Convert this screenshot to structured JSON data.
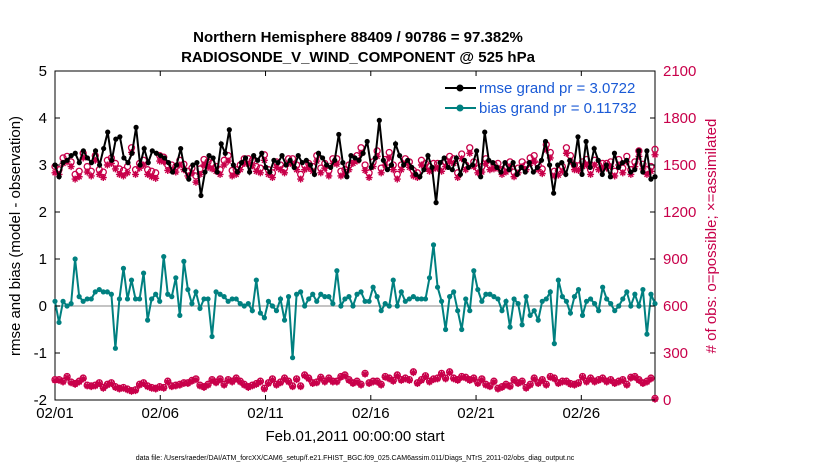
{
  "chart_data": {
    "type": "line",
    "title_line1": "Northern Hemisphere 88409 / 90786 = 97.382%",
    "title_line2": "RADIOSONDE_V_WIND_COMPONENT @ 525 hPa",
    "xlabel": "Feb.01,2011 00:00:00 start",
    "ylabel": "rmse and bias (model - observation)",
    "ylabel_right": "# of obs: o=possible; ×=assimilated",
    "footer": "data file: /Users/raeder/DAI/ATM_forcXX/CAM6_setup/f.e21.FHIST_BGC.f09_025.CAM6assim.011/Diags_NTrS_2011-02/obs_diag_output.nc",
    "xlim": [
      0,
      28.5
    ],
    "ylim": [
      -2,
      5
    ],
    "ylim_right": [
      0,
      2100
    ],
    "x_ticks": [
      0,
      5,
      10,
      15,
      20,
      25
    ],
    "x_tick_labels": [
      "02/01",
      "02/06",
      "02/11",
      "02/16",
      "02/21",
      "02/26"
    ],
    "y_ticks": [
      -2,
      -1,
      0,
      1,
      2,
      3,
      4,
      5
    ],
    "y_tick_labels": [
      "-2",
      "-1",
      "0",
      "1",
      "2",
      "3",
      "4",
      "5"
    ],
    "y_right_ticks": [
      0,
      300,
      600,
      900,
      1200,
      1500,
      1800,
      2100
    ],
    "y_right_tick_labels": [
      "0",
      "300",
      "600",
      "900",
      "1200",
      "1500",
      "1800",
      "2100"
    ],
    "colors": {
      "rmse": "#000000",
      "bias": "#008080",
      "obs": "#c8004a",
      "zero_line": "#b0b0b0",
      "legend_text": "#1a5ad6"
    },
    "series": [
      {
        "name": "rmse",
        "legend": "rmse grand pr = 3.0722",
        "values": [
          3.0,
          2.75,
          3.05,
          3.1,
          3.2,
          3.25,
          3.05,
          3.3,
          3.15,
          3.05,
          3.3,
          3.0,
          3.35,
          3.7,
          3.1,
          3.55,
          3.6,
          3.15,
          3.05,
          3.25,
          3.8,
          3.0,
          3.35,
          3.05,
          3.3,
          3.25,
          3.2,
          3.15,
          3.05,
          2.85,
          3.0,
          3.35,
          2.9,
          2.7,
          3.0,
          3.05,
          2.35,
          2.85,
          3.2,
          3.15,
          2.85,
          3.45,
          3.25,
          3.75,
          3.0,
          2.85,
          3.05,
          3.15,
          2.85,
          3.2,
          3.1,
          3.25,
          2.95,
          2.85,
          3.1,
          3.05,
          3.2,
          3.0,
          3.1,
          2.95,
          3.2,
          3.05,
          3.1,
          3.0,
          2.8,
          3.25,
          3.15,
          3.0,
          2.95,
          3.1,
          3.65,
          3.05,
          2.75,
          3.2,
          3.15,
          3.1,
          3.25,
          3.5,
          2.95,
          3.15,
          3.95,
          3.1,
          2.9,
          3.0,
          3.45,
          3.2,
          3.0,
          3.1,
          2.95,
          2.8,
          2.75,
          2.9,
          3.2,
          2.95,
          2.2,
          3.05,
          3.15,
          2.95,
          2.9,
          3.15,
          2.8,
          3.1,
          2.95,
          3.0,
          3.3,
          2.75,
          3.7,
          3.1,
          3.05,
          2.95,
          2.85,
          3.05,
          2.9,
          3.05,
          2.8,
          2.95,
          2.85,
          3.05,
          2.85,
          2.95,
          3.1,
          3.5,
          3.0,
          2.4,
          3.0,
          3.05,
          2.8,
          3.1,
          3.0,
          3.6,
          2.8,
          3.5,
          2.95,
          3.35,
          3.1,
          2.8,
          3.0,
          2.75,
          3.25,
          2.95,
          3.05,
          3.1,
          2.85,
          2.9,
          3.3,
          2.85,
          3.3,
          2.7,
          2.75
        ]
      },
      {
        "name": "bias",
        "legend": "bias grand pr = 0.11732",
        "values": [
          0.1,
          -0.35,
          0.1,
          0.0,
          0.05,
          1.0,
          0.2,
          0.1,
          0.15,
          0.15,
          0.3,
          0.35,
          0.3,
          0.3,
          0.25,
          -0.9,
          0.15,
          0.8,
          0.15,
          0.55,
          0.15,
          0.15,
          0.7,
          -0.3,
          0.15,
          0.25,
          0.1,
          1.05,
          0.25,
          0.2,
          0.6,
          -0.2,
          0.95,
          0.35,
          0.05,
          0.3,
          -0.05,
          0.15,
          0.15,
          -0.65,
          0.3,
          0.25,
          0.2,
          0.1,
          0.15,
          0.15,
          0.05,
          0.0,
          0.05,
          -0.1,
          0.55,
          -0.15,
          -0.25,
          0.1,
          0.0,
          -0.1,
          0.15,
          -0.3,
          0.2,
          -1.1,
          0.25,
          0.3,
          0.0,
          0.15,
          0.25,
          0.1,
          0.25,
          0.2,
          0.2,
          0.05,
          0.75,
          0.0,
          0.15,
          0.2,
          0.0,
          0.25,
          0.3,
          0.1,
          0.1,
          0.4,
          0.2,
          -0.1,
          0.05,
          0.0,
          0.55,
          0.0,
          0.3,
          0.1,
          0.15,
          0.2,
          0.15,
          0.15,
          0.15,
          0.6,
          1.3,
          0.4,
          0.1,
          -0.5,
          0.2,
          0.3,
          -0.1,
          -0.5,
          0.15,
          -0.1,
          0.75,
          0.35,
          0.1,
          0.25,
          0.25,
          0.2,
          0.15,
          -0.1,
          0.1,
          -0.45,
          0.15,
          0.05,
          -0.4,
          0.2,
          -0.2,
          -0.1,
          -0.3,
          0.1,
          0.15,
          0.3,
          -0.8,
          0.55,
          0.2,
          0.1,
          -0.15,
          0.2,
          0.35,
          -0.2,
          0.1,
          0.15,
          0.05,
          -0.1,
          0.4,
          0.15,
          0.05,
          -0.1,
          0.0,
          0.15,
          0.3,
          0.0,
          0.25,
          0.0,
          0.35,
          -0.6,
          0.25,
          0.05
        ]
      },
      {
        "name": "obs_possible",
        "legend": "",
        "values": [
          1490,
          1470,
          1545,
          1555,
          1520,
          1440,
          1460,
          1575,
          1490,
          1460,
          1560,
          1470,
          1455,
          1530,
          1545,
          1510,
          1475,
          1465,
          1490,
          1610,
          1470,
          1510,
          1530,
          1470,
          1460,
          1450,
          1560,
          1550,
          1500,
          1500,
          1490,
          1530,
          1505,
          1460,
          1480,
          1430,
          1475,
          1535,
          1520,
          1510,
          1490,
          1470,
          1530,
          1560,
          1465,
          1470,
          1500,
          1540,
          1540,
          1530,
          1490,
          1480,
          1565,
          1470,
          1450,
          1520,
          1500,
          1480,
          1540,
          1540,
          1500,
          1440,
          1500,
          1510,
          1490,
          1560,
          1480,
          1510,
          1465,
          1540,
          1540,
          1460,
          1470,
          1500,
          1545,
          1560,
          1610,
          1500,
          1450,
          1520,
          1590,
          1480,
          1535,
          1580,
          1500,
          1440,
          1500,
          1540,
          1520,
          1465,
          1450,
          1530,
          1510,
          1490,
          1510,
          1510,
          1490,
          1520,
          1555,
          1540,
          1450,
          1570,
          1500,
          1610,
          1520,
          1480,
          1490,
          1540,
          1500,
          1505,
          1510,
          1470,
          1490,
          1520,
          1455,
          1480,
          1520,
          1500,
          1545,
          1560,
          1500,
          1475,
          1630,
          1580,
          1460,
          1465,
          1490,
          1610,
          1560,
          1500,
          1495,
          1520,
          1535,
          1470,
          1530,
          1500,
          1510,
          1510,
          1520,
          1460,
          1535,
          1480,
          1555,
          1470,
          1520,
          1590,
          1505,
          1470,
          1490,
          1600
        ]
      },
      {
        "name": "obs_assimilated",
        "legend": "",
        "values": [
          1450,
          1440,
          1510,
          1520,
          1490,
          1410,
          1425,
          1545,
          1455,
          1430,
          1530,
          1440,
          1420,
          1500,
          1510,
          1475,
          1440,
          1430,
          1450,
          1580,
          1440,
          1480,
          1500,
          1440,
          1425,
          1415,
          1525,
          1520,
          1465,
          1465,
          1455,
          1500,
          1470,
          1430,
          1450,
          1390,
          1440,
          1500,
          1485,
          1475,
          1460,
          1440,
          1500,
          1525,
          1430,
          1440,
          1470,
          1510,
          1505,
          1495,
          1460,
          1450,
          1530,
          1440,
          1420,
          1485,
          1470,
          1450,
          1510,
          1505,
          1470,
          1410,
          1470,
          1480,
          1460,
          1525,
          1450,
          1480,
          1430,
          1510,
          1505,
          1430,
          1440,
          1470,
          1510,
          1525,
          1575,
          1465,
          1420,
          1490,
          1555,
          1450,
          1500,
          1545,
          1470,
          1410,
          1470,
          1510,
          1485,
          1430,
          1420,
          1500,
          1480,
          1460,
          1475,
          1480,
          1460,
          1490,
          1520,
          1510,
          1420,
          1540,
          1470,
          1575,
          1490,
          1450,
          1455,
          1510,
          1470,
          1475,
          1480,
          1440,
          1455,
          1490,
          1425,
          1450,
          1490,
          1470,
          1510,
          1525,
          1470,
          1445,
          1595,
          1545,
          1430,
          1435,
          1460,
          1575,
          1525,
          1470,
          1465,
          1490,
          1500,
          1440,
          1500,
          1470,
          1480,
          1480,
          1490,
          1430,
          1500,
          1450,
          1520,
          1440,
          1490,
          1555,
          1475,
          1440,
          1460,
          1565
        ]
      },
      {
        "name": "obs_possible_low",
        "legend": "",
        "values": [
          130,
          130,
          120,
          150,
          115,
          105,
          120,
          140,
          95,
          90,
          95,
          110,
          80,
          100,
          110,
          85,
          75,
          80,
          70,
          60,
          65,
          100,
          110,
          90,
          80,
          75,
          85,
          80,
          120,
          90,
          95,
          100,
          110,
          110,
          125,
          135,
          95,
          85,
          100,
          130,
          115,
          135,
          100,
          130,
          120,
          140,
          120,
          100,
          85,
          95,
          105,
          120,
          75,
          110,
          135,
          100,
          115,
          140,
          120,
          90,
          135,
          90,
          160,
          140,
          110,
          115,
          145,
          120,
          140,
          120,
          120,
          150,
          160,
          130,
          110,
          120,
          100,
          170,
          110,
          120,
          120,
          100,
          150,
          140,
          125,
          160,
          130,
          140,
          130,
          180,
          110,
          130,
          155,
          120,
          135,
          140,
          170,
          140,
          180,
          140,
          130,
          150,
          145,
          130,
          140,
          110,
          135,
          100,
          90,
          120,
          75,
          85,
          100,
          90,
          130,
          110,
          120,
          80,
          100,
          140,
          110,
          130,
          100,
          150,
          140,
          110,
          120,
          120,
          105,
          100,
          110,
          150,
          120,
          140,
          120,
          130,
          140,
          120,
          130,
          110,
          120,
          130,
          100,
          145,
          150,
          130,
          110,
          120,
          140,
          10
        ]
      },
      {
        "name": "obs_assimilated_low",
        "legend": "",
        "values": [
          125,
          125,
          115,
          145,
          110,
          100,
          115,
          135,
          90,
          85,
          90,
          105,
          75,
          95,
          105,
          80,
          70,
          75,
          65,
          55,
          60,
          95,
          105,
          85,
          75,
          70,
          80,
          75,
          115,
          85,
          90,
          95,
          105,
          105,
          120,
          130,
          90,
          80,
          95,
          125,
          110,
          130,
          95,
          125,
          115,
          135,
          115,
          95,
          80,
          90,
          100,
          115,
          70,
          105,
          130,
          95,
          110,
          135,
          115,
          85,
          130,
          85,
          155,
          135,
          105,
          110,
          140,
          115,
          135,
          115,
          115,
          145,
          155,
          125,
          105,
          115,
          95,
          165,
          105,
          115,
          115,
          95,
          145,
          135,
          120,
          155,
          125,
          135,
          125,
          175,
          105,
          125,
          150,
          115,
          130,
          135,
          165,
          135,
          175,
          135,
          125,
          145,
          140,
          125,
          135,
          105,
          130,
          95,
          85,
          115,
          70,
          80,
          95,
          85,
          125,
          105,
          115,
          75,
          95,
          135,
          105,
          125,
          95,
          145,
          135,
          105,
          115,
          115,
          100,
          95,
          105,
          145,
          115,
          135,
          115,
          125,
          135,
          115,
          125,
          105,
          115,
          125,
          95,
          140,
          145,
          125,
          105,
          115,
          135,
          5
        ]
      }
    ]
  }
}
